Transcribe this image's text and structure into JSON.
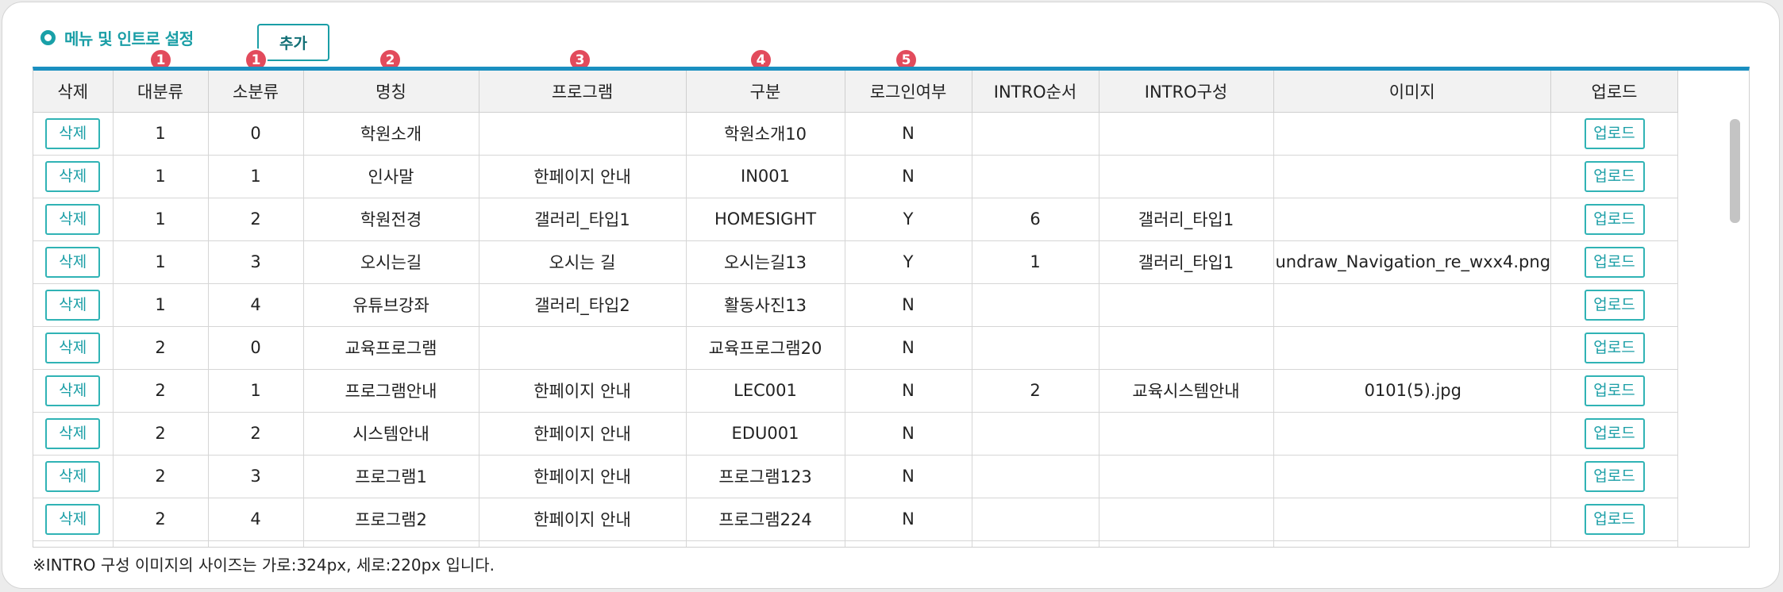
{
  "section": {
    "title": "메뉴 및 인트로 설정",
    "add_label": "추가"
  },
  "badges": [
    "1",
    "1",
    "2",
    "3",
    "4",
    "5"
  ],
  "columns": [
    "삭제",
    "대분류",
    "소분류",
    "명칭",
    "프로그램",
    "구분",
    "로그인여부",
    "INTRO순서",
    "INTRO구성",
    "이미지",
    "업로드"
  ],
  "buttons": {
    "delete_label": "삭제",
    "upload_label": "업로드"
  },
  "rows": [
    {
      "major": "1",
      "minor": "0",
      "name": "학원소개",
      "program": "",
      "category": "학원소개10",
      "login": "N",
      "intro_order": "",
      "intro_config": "",
      "image": ""
    },
    {
      "major": "1",
      "minor": "1",
      "name": "인사말",
      "program": "한페이지 안내",
      "category": "IN001",
      "login": "N",
      "intro_order": "",
      "intro_config": "",
      "image": ""
    },
    {
      "major": "1",
      "minor": "2",
      "name": "학원전경",
      "program": "갤러리_타입1",
      "category": "HOMESIGHT",
      "login": "Y",
      "intro_order": "6",
      "intro_config": "갤러리_타입1",
      "image": ""
    },
    {
      "major": "1",
      "minor": "3",
      "name": "오시는길",
      "program": "오시는 길",
      "category": "오시는길13",
      "login": "Y",
      "intro_order": "1",
      "intro_config": "갤러리_타입1",
      "image": "undraw_Navigation_re_wxx4.png"
    },
    {
      "major": "1",
      "minor": "4",
      "name": "유튜브강좌",
      "program": "갤러리_타입2",
      "category": "활동사진13",
      "login": "N",
      "intro_order": "",
      "intro_config": "",
      "image": ""
    },
    {
      "major": "2",
      "minor": "0",
      "name": "교육프로그램",
      "program": "",
      "category": "교육프로그램20",
      "login": "N",
      "intro_order": "",
      "intro_config": "",
      "image": ""
    },
    {
      "major": "2",
      "minor": "1",
      "name": "프로그램안내",
      "program": "한페이지 안내",
      "category": "LEC001",
      "login": "N",
      "intro_order": "2",
      "intro_config": "교육시스템안내",
      "image": "0101(5).jpg"
    },
    {
      "major": "2",
      "minor": "2",
      "name": "시스템안내",
      "program": "한페이지 안내",
      "category": "EDU001",
      "login": "N",
      "intro_order": "",
      "intro_config": "",
      "image": ""
    },
    {
      "major": "2",
      "minor": "3",
      "name": "프로그램1",
      "program": "한페이지 안내",
      "category": "프로그램123",
      "login": "N",
      "intro_order": "",
      "intro_config": "",
      "image": ""
    },
    {
      "major": "2",
      "minor": "4",
      "name": "프로그램2",
      "program": "한페이지 안내",
      "category": "프로그램224",
      "login": "N",
      "intro_order": "",
      "intro_config": "",
      "image": ""
    },
    {
      "major": "",
      "minor": "",
      "name": "",
      "program": "",
      "category": "",
      "login": "",
      "intro_order": "",
      "intro_config": "",
      "image": ""
    }
  ],
  "footnote": "※INTRO 구성 이미지의 사이즈는 가로:324px, 세로:220px 입니다."
}
